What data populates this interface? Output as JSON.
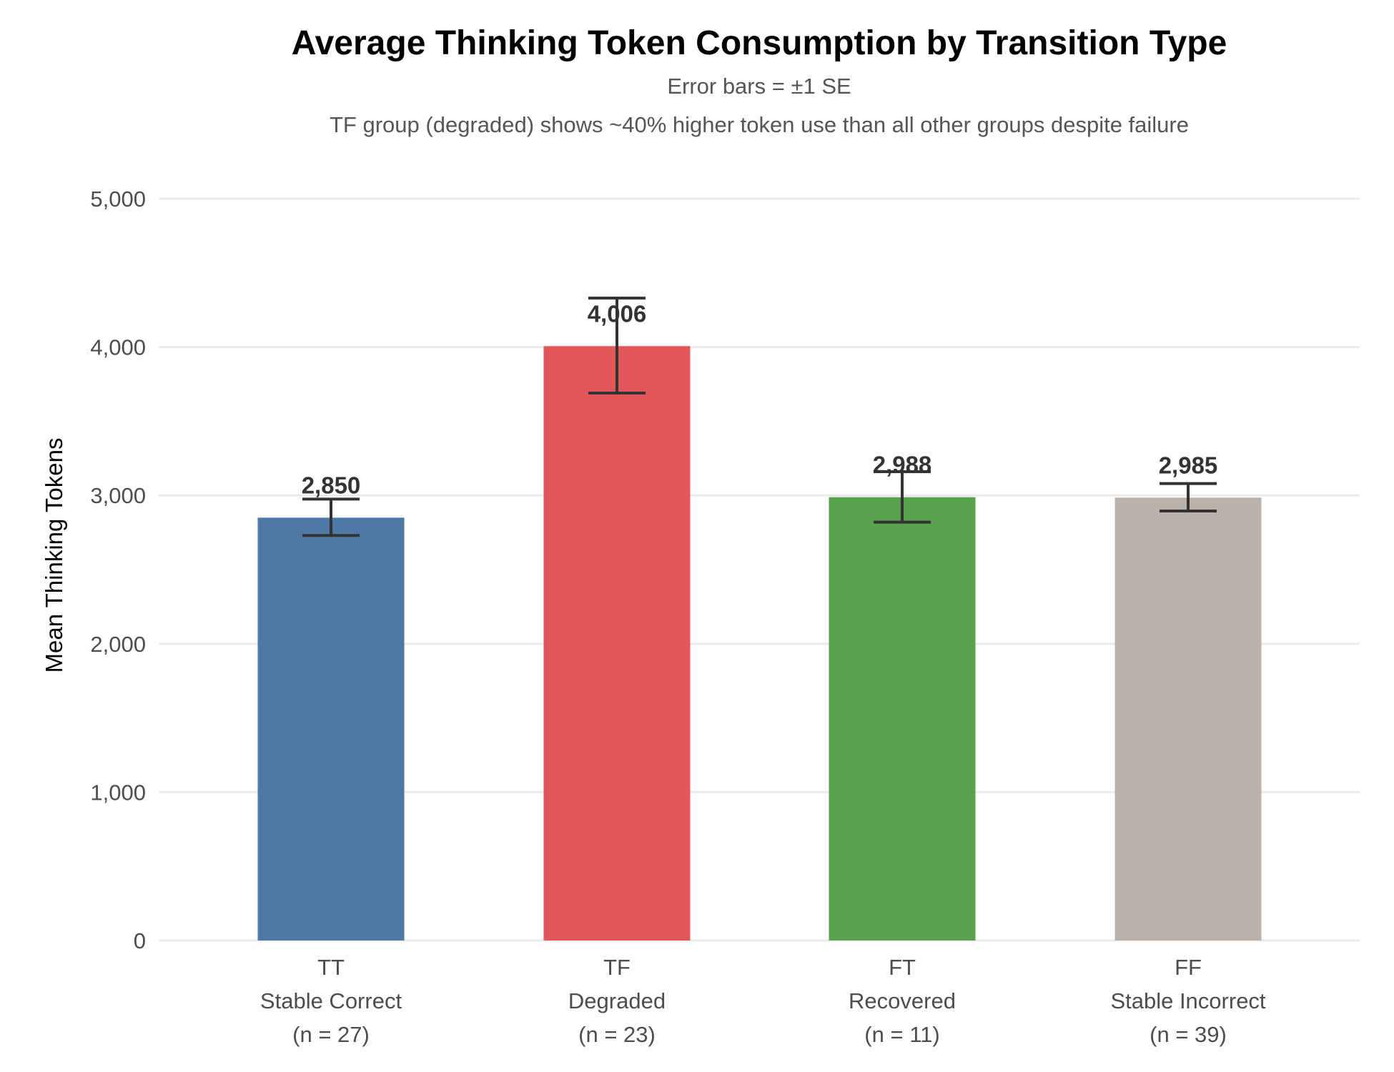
{
  "chart_data": {
    "type": "bar",
    "title": "Average Thinking Token Consumption by Transition Type",
    "subtitle_lines": [
      "Error bars = ±1 SE",
      "TF group (degraded) shows ~40% higher token use than all other groups despite failure"
    ],
    "xlabel": "",
    "ylabel": "Mean Thinking Tokens",
    "ylim": [
      0,
      5000
    ],
    "yticks": [
      0,
      1000,
      2000,
      3000,
      4000,
      5000
    ],
    "ytick_labels": [
      "0",
      "1,000",
      "2,000",
      "3,000",
      "4,000",
      "5,000"
    ],
    "grid": "horizontal",
    "legend": "none",
    "categories": [
      {
        "code": "TT",
        "name": "Stable Correct",
        "n_label": "(n = 27)"
      },
      {
        "code": "TF",
        "name": "Degraded",
        "n_label": "(n = 23)"
      },
      {
        "code": "FT",
        "name": "Recovered",
        "n_label": "(n = 11)"
      },
      {
        "code": "FF",
        "name": "Stable Incorrect",
        "n_label": "(n = 39)"
      }
    ],
    "values": [
      2850,
      4006,
      2988,
      2985
    ],
    "value_labels": [
      "2,850",
      "4,006",
      "2,988",
      "2,985"
    ],
    "error_low": [
      2730,
      3690,
      2820,
      2895
    ],
    "error_high": [
      2975,
      4330,
      3160,
      3080
    ],
    "colors": [
      "#4e79a7",
      "#e15759",
      "#59a14f",
      "#bab0ac"
    ]
  }
}
